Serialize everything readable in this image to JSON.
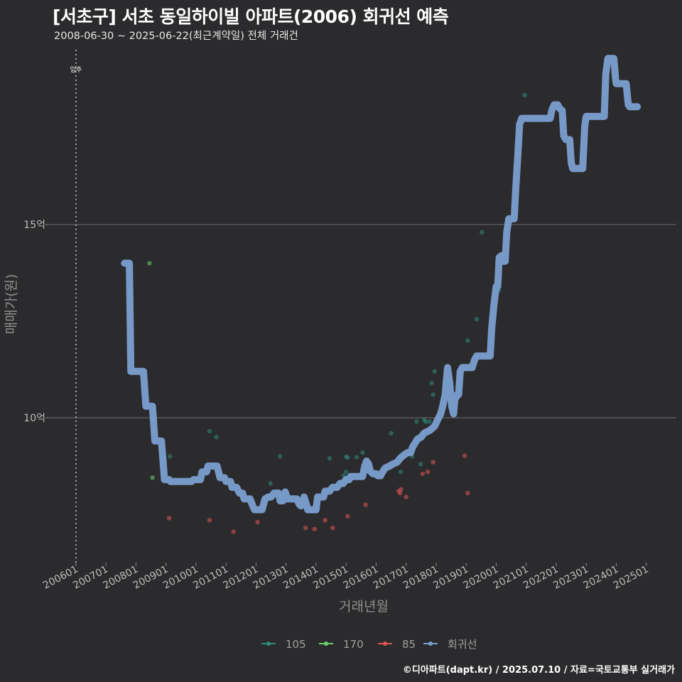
{
  "chart_data": {
    "type": "line",
    "title": "[서초구] 서초 동일하이빌 아파트(2006) 회귀선 예측",
    "subtitle": "2008-06-30 ~ 2025-06-22(최근계약일) 전체 거래건",
    "xlabel": "거래년월",
    "ylabel": "매매가(원)",
    "caption": "©디아파트(dapt.kr) / 2025.07.10 / 자료=국토교통부 실거래가",
    "x_ticks": [
      "200601",
      "200701",
      "200801",
      "200901",
      "201001",
      "201101",
      "201201",
      "201301",
      "201401",
      "201501",
      "201601",
      "201701",
      "201801",
      "201901",
      "202001",
      "202101",
      "202201",
      "202301",
      "202401",
      "202501"
    ],
    "y_ticks": [
      {
        "value": 10,
        "label": "10억"
      },
      {
        "value": 15,
        "label": "15억"
      }
    ],
    "ylim": [
      6.25,
      19.6
    ],
    "xlim": [
      2005.08,
      2026.0
    ],
    "annotation": {
      "label": "입주",
      "x": 2006.0
    },
    "legend": [
      {
        "name": "105",
        "color": "#2e8b7e"
      },
      {
        "name": "170",
        "color": "#6bd36b"
      },
      {
        "name": "85",
        "color": "#e05555"
      },
      {
        "name": "회귀선",
        "color": "#7b9fd0"
      }
    ],
    "series": [
      {
        "name": "회귀선",
        "color": "#7b9fd0",
        "points": [
          [
            2007.62,
            14.0
          ],
          [
            2007.78,
            14.0
          ],
          [
            2007.83,
            11.2
          ],
          [
            2008.25,
            11.2
          ],
          [
            2008.33,
            10.3
          ],
          [
            2008.55,
            10.3
          ],
          [
            2008.63,
            9.4
          ],
          [
            2008.85,
            9.4
          ],
          [
            2008.95,
            8.4
          ],
          [
            2009.1,
            8.4
          ],
          [
            2009.15,
            8.35
          ],
          [
            2009.85,
            8.35
          ],
          [
            2009.92,
            8.4
          ],
          [
            2010.15,
            8.4
          ],
          [
            2010.2,
            8.6
          ],
          [
            2010.35,
            8.6
          ],
          [
            2010.4,
            8.75
          ],
          [
            2010.7,
            8.75
          ],
          [
            2010.8,
            8.45
          ],
          [
            2010.95,
            8.45
          ],
          [
            2011.0,
            8.35
          ],
          [
            2011.15,
            8.35
          ],
          [
            2011.2,
            8.2
          ],
          [
            2011.35,
            8.2
          ],
          [
            2011.45,
            8.05
          ],
          [
            2011.55,
            8.05
          ],
          [
            2011.6,
            7.9
          ],
          [
            2011.8,
            7.9
          ],
          [
            2011.9,
            7.7
          ],
          [
            2011.95,
            7.62
          ],
          [
            2012.2,
            7.62
          ],
          [
            2012.3,
            7.9
          ],
          [
            2012.4,
            7.95
          ],
          [
            2012.5,
            7.95
          ],
          [
            2012.6,
            8.05
          ],
          [
            2012.75,
            8.05
          ],
          [
            2012.8,
            7.85
          ],
          [
            2012.9,
            7.85
          ],
          [
            2012.97,
            8.08
          ],
          [
            2013.05,
            7.9
          ],
          [
            2013.35,
            7.9
          ],
          [
            2013.45,
            7.75
          ],
          [
            2013.5,
            7.72
          ],
          [
            2013.6,
            7.95
          ],
          [
            2013.7,
            7.7
          ],
          [
            2013.72,
            7.62
          ],
          [
            2014.0,
            7.62
          ],
          [
            2014.05,
            7.95
          ],
          [
            2014.25,
            7.95
          ],
          [
            2014.3,
            8.1
          ],
          [
            2014.45,
            8.1
          ],
          [
            2014.55,
            8.2
          ],
          [
            2014.7,
            8.2
          ],
          [
            2014.8,
            8.3
          ],
          [
            2014.9,
            8.3
          ],
          [
            2015.0,
            8.4
          ],
          [
            2015.1,
            8.4
          ],
          [
            2015.15,
            8.48
          ],
          [
            2015.55,
            8.48
          ],
          [
            2015.62,
            8.75
          ],
          [
            2015.68,
            8.88
          ],
          [
            2015.75,
            8.8
          ],
          [
            2015.8,
            8.62
          ],
          [
            2015.9,
            8.55
          ],
          [
            2016.0,
            8.55
          ],
          [
            2016.05,
            8.5
          ],
          [
            2016.15,
            8.5
          ],
          [
            2016.2,
            8.58
          ],
          [
            2016.3,
            8.7
          ],
          [
            2016.45,
            8.75
          ],
          [
            2016.55,
            8.8
          ],
          [
            2016.7,
            8.85
          ],
          [
            2016.8,
            8.95
          ],
          [
            2016.9,
            9.02
          ],
          [
            2017.05,
            9.1
          ],
          [
            2017.15,
            9.1
          ],
          [
            2017.22,
            9.25
          ],
          [
            2017.3,
            9.35
          ],
          [
            2017.38,
            9.45
          ],
          [
            2017.5,
            9.5
          ],
          [
            2017.6,
            9.6
          ],
          [
            2017.8,
            9.68
          ],
          [
            2017.95,
            9.78
          ],
          [
            2018.05,
            9.95
          ],
          [
            2018.15,
            10.1
          ],
          [
            2018.22,
            10.3
          ],
          [
            2018.3,
            10.6
          ],
          [
            2018.38,
            11.3
          ],
          [
            2018.45,
            10.9
          ],
          [
            2018.52,
            10.3
          ],
          [
            2018.58,
            10.1
          ],
          [
            2018.62,
            10.45
          ],
          [
            2018.7,
            10.6
          ],
          [
            2018.75,
            10.6
          ],
          [
            2018.8,
            11.2
          ],
          [
            2018.87,
            11.3
          ],
          [
            2019.2,
            11.3
          ],
          [
            2019.28,
            11.5
          ],
          [
            2019.35,
            11.6
          ],
          [
            2019.7,
            11.6
          ],
          [
            2019.8,
            11.6
          ],
          [
            2019.85,
            12.3
          ],
          [
            2019.92,
            12.9
          ],
          [
            2020.0,
            13.4
          ],
          [
            2020.05,
            13.4
          ],
          [
            2020.1,
            14.15
          ],
          [
            2020.18,
            14.2
          ],
          [
            2020.25,
            14.05
          ],
          [
            2020.3,
            14.05
          ],
          [
            2020.35,
            14.8
          ],
          [
            2020.42,
            15.15
          ],
          [
            2020.6,
            15.15
          ],
          [
            2020.65,
            15.9
          ],
          [
            2020.72,
            16.8
          ],
          [
            2020.78,
            17.6
          ],
          [
            2020.85,
            17.75
          ],
          [
            2021.8,
            17.75
          ],
          [
            2021.85,
            17.95
          ],
          [
            2021.93,
            18.1
          ],
          [
            2022.05,
            18.1
          ],
          [
            2022.12,
            18.0
          ],
          [
            2022.2,
            17.95
          ],
          [
            2022.25,
            17.3
          ],
          [
            2022.32,
            17.2
          ],
          [
            2022.45,
            17.2
          ],
          [
            2022.5,
            16.6
          ],
          [
            2022.55,
            16.45
          ],
          [
            2022.88,
            16.45
          ],
          [
            2022.95,
            17.55
          ],
          [
            2023.0,
            17.8
          ],
          [
            2023.6,
            17.8
          ],
          [
            2023.65,
            18.9
          ],
          [
            2023.72,
            19.3
          ],
          [
            2023.92,
            19.3
          ],
          [
            2023.98,
            18.75
          ],
          [
            2024.0,
            18.65
          ],
          [
            2024.33,
            18.65
          ],
          [
            2024.4,
            18.1
          ],
          [
            2024.45,
            18.05
          ],
          [
            2024.7,
            18.05
          ]
        ]
      },
      {
        "name": "105",
        "color": "#2e8b7e",
        "points": [
          [
            2009.13,
            9.0
          ],
          [
            2010.45,
            9.65
          ],
          [
            2010.68,
            9.5
          ],
          [
            2010.78,
            8.55
          ],
          [
            2012.48,
            8.3
          ],
          [
            2012.8,
            9.0
          ],
          [
            2014.45,
            8.95
          ],
          [
            2015.0,
            8.99
          ],
          [
            2015.05,
            8.97
          ],
          [
            2015.0,
            8.6
          ],
          [
            2015.35,
            8.98
          ],
          [
            2015.55,
            9.1
          ],
          [
            2015.83,
            8.58
          ],
          [
            2016.5,
            9.6
          ],
          [
            2016.82,
            8.6
          ],
          [
            2017.2,
            9.0
          ],
          [
            2017.35,
            9.9
          ],
          [
            2017.48,
            8.8
          ],
          [
            2017.6,
            9.95
          ],
          [
            2017.78,
            9.9
          ],
          [
            2017.85,
            10.9
          ],
          [
            2017.95,
            11.2
          ],
          [
            2017.9,
            10.6
          ],
          [
            2017.65,
            9.9
          ],
          [
            2018.28,
            10.9
          ],
          [
            2019.05,
            12.0
          ],
          [
            2019.35,
            12.55
          ],
          [
            2019.52,
            14.8
          ],
          [
            2020.1,
            13.3
          ],
          [
            2020.72,
            16.8
          ],
          [
            2020.95,
            18.35
          ],
          [
            2014.92,
            8.5
          ]
        ]
      },
      {
        "name": "170",
        "color": "#6bd36b",
        "points": [
          [
            2008.45,
            14.0
          ],
          [
            2008.55,
            8.45
          ]
        ]
      },
      {
        "name": "85",
        "color": "#e05555",
        "points": [
          [
            2009.1,
            7.4
          ],
          [
            2010.45,
            7.35
          ],
          [
            2011.25,
            7.05
          ],
          [
            2012.05,
            7.3
          ],
          [
            2013.65,
            7.15
          ],
          [
            2013.95,
            7.12
          ],
          [
            2014.3,
            7.35
          ],
          [
            2014.55,
            7.15
          ],
          [
            2015.05,
            7.45
          ],
          [
            2015.65,
            7.75
          ],
          [
            2016.75,
            8.1
          ],
          [
            2016.83,
            8.15
          ],
          [
            2016.8,
            8.05
          ],
          [
            2017.0,
            7.95
          ],
          [
            2017.55,
            8.55
          ],
          [
            2017.72,
            8.6
          ],
          [
            2017.9,
            8.85
          ],
          [
            2018.95,
            9.02
          ],
          [
            2019.05,
            8.05
          ]
        ]
      }
    ]
  }
}
